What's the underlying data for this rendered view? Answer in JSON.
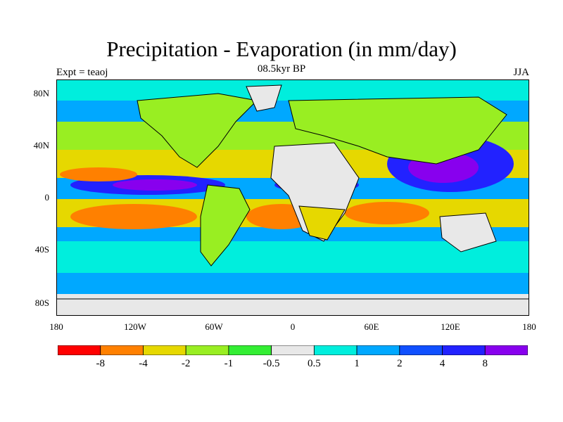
{
  "header": {
    "title": "Precipitation - Evaporation (in mm/day)",
    "subtitle": "08.5kyr BP",
    "left_label": "Expt = teaoj",
    "right_label": "JJA"
  },
  "axes": {
    "lat_labels": [
      "80N",
      "40N",
      "0",
      "40S",
      "80S"
    ],
    "lon_labels": [
      "180",
      "120W",
      "60W",
      "0",
      "60E",
      "120E",
      "180"
    ]
  },
  "colorbar": {
    "colors": [
      "#ff0000",
      "#ff8000",
      "#e6d800",
      "#99ee22",
      "#33ee33",
      "#e8e8e8",
      "#00eedd",
      "#00a8ff",
      "#1050ff",
      "#2222ff",
      "#8800ee"
    ],
    "labels": [
      "-8",
      "-4",
      "-2",
      "-1",
      "-0.5",
      "0.5",
      "1",
      "2",
      "4",
      "8"
    ]
  },
  "map": {
    "ocean_color": "#00a8ff",
    "coast_color": "#000000"
  }
}
